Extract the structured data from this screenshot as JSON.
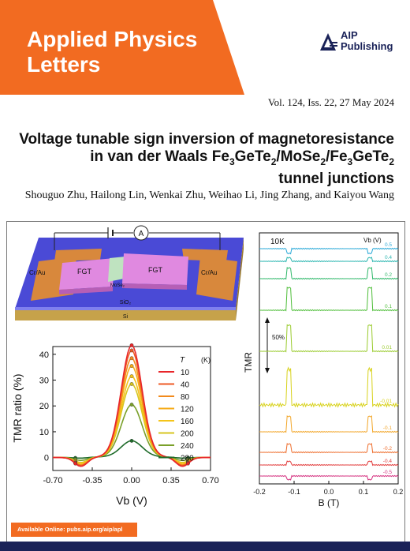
{
  "journal": {
    "name_line1": "Applied Physics",
    "name_line2": "Letters"
  },
  "publisher": {
    "name": "AIP\nPublishing"
  },
  "issue": "Vol. 124, Iss. 22, 27 May 2024",
  "article": {
    "title_parts": [
      "Voltage tunable sign inversion of magnetoresistance",
      "in van der Waals Fe",
      "3",
      "GeTe",
      "2",
      "/MoSe",
      "2",
      "/Fe",
      "3",
      "GeTe",
      "2",
      "tunnel junctions"
    ],
    "authors": "Shouguo Zhu, Hailong Lin, Wenkai Zhu, Weihao Li, Jing Zhang, and Kaiyou Wang"
  },
  "device": {
    "labels": {
      "meter": "A",
      "contact_left": "Cr/Au",
      "contact_right": "Cr/Au",
      "fgt_left": "FGT",
      "fgt_right": "FGT",
      "barrier": "MoSe₂",
      "oxide": "SiO₂",
      "substrate": "Si"
    }
  },
  "chart_data": [
    {
      "type": "line",
      "ylabel": "TMR ratio (%)",
      "xlabel": "Vb (V)",
      "x_ticks": [
        "-0.70",
        "-0.35",
        "0.00",
        "0.35",
        "0.70"
      ],
      "y_ticks": [
        "0",
        "10",
        "20",
        "30",
        "40"
      ],
      "xlim": [
        -0.7,
        0.7
      ],
      "ylim": [
        -5,
        43
      ],
      "legend_title": "T",
      "legend_unit": "(K)",
      "legend_position": "top-right",
      "series": [
        {
          "name": "10",
          "color": "#e8262a",
          "peak": 43,
          "valley": -3.5
        },
        {
          "name": "40",
          "color": "#ee5a24",
          "peak": 41,
          "valley": -3.2
        },
        {
          "name": "80",
          "color": "#f28a1c",
          "peak": 38,
          "valley": -3
        },
        {
          "name": "120",
          "color": "#f6ab18",
          "peak": 35,
          "valley": -2.8
        },
        {
          "name": "160",
          "color": "#f4c41a",
          "peak": 31,
          "valley": -2.3
        },
        {
          "name": "200",
          "color": "#d7c520",
          "peak": 28,
          "valley": -2
        },
        {
          "name": "240",
          "color": "#7aa02a",
          "peak": 20,
          "valley": -1.2
        },
        {
          "name": "280",
          "color": "#1f6b2a",
          "peak": 6,
          "valley": -0.3
        }
      ]
    },
    {
      "type": "line",
      "title": "10K",
      "xlabel": "B (T)",
      "ylabel": "TMR",
      "x_ticks": [
        "-0.2",
        "-0.1",
        "0.0",
        "0.1",
        "0.2"
      ],
      "xlim": [
        -0.2,
        0.2
      ],
      "legend_title": "Vb (V)",
      "scale_bar": "50%",
      "series": [
        {
          "name": "0.5",
          "color": "#2aa9d8",
          "tmr": -8
        },
        {
          "name": "0.4",
          "color": "#2ab5b0",
          "tmr": 6
        },
        {
          "name": "0.2",
          "color": "#2fb86a",
          "tmr": 18
        },
        {
          "name": "0.1",
          "color": "#4fbe3a",
          "tmr": 38
        },
        {
          "name": "0.01",
          "color": "#9acb2e",
          "tmr": 44
        },
        {
          "name": "-0.01",
          "color": "#d8d21c",
          "tmr": 60
        },
        {
          "name": "-0.1",
          "color": "#f2a629",
          "tmr": 26
        },
        {
          "name": "-0.2",
          "color": "#ee6d2c",
          "tmr": 14
        },
        {
          "name": "-0.4",
          "color": "#e23b3b",
          "tmr": 6
        },
        {
          "name": "-0.5",
          "color": "#d4307f",
          "tmr": -6
        }
      ]
    }
  ],
  "footer": {
    "available": "Available Online: pubs.aip.org/aip/apl"
  },
  "colors": {
    "accent": "#f26b21",
    "brand_dark": "#1a2258"
  }
}
